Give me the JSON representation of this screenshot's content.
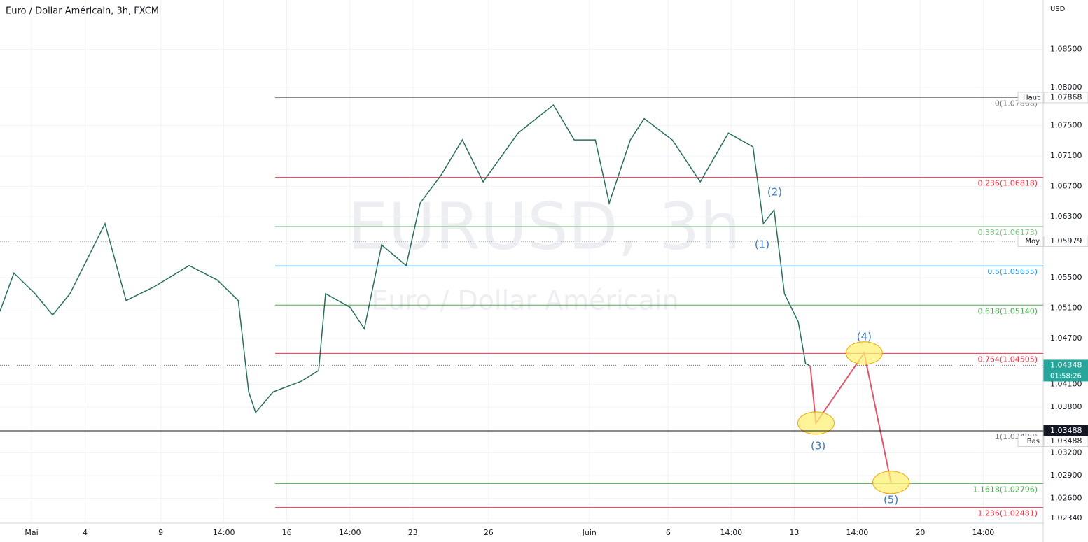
{
  "chart_data": {
    "type": "line",
    "title": "Euro / Dollar Américain, 3h, FXCM",
    "watermark": "EURUSD, 3h",
    "watermark_subtitle": "Euro / Dollar Américain",
    "currency": "USD",
    "grid": true,
    "xlim": [
      0,
      331
    ],
    "ylim": [
      1.02027,
      1.09149
    ],
    "xticks": [
      {
        "value": 10,
        "label": "Mai"
      },
      {
        "value": 27,
        "label": "4"
      },
      {
        "value": 51,
        "label": "9"
      },
      {
        "value": 71,
        "label": "14:00"
      },
      {
        "value": 91,
        "label": "16"
      },
      {
        "value": 111,
        "label": "14:00"
      },
      {
        "value": 131,
        "label": "23"
      },
      {
        "value": 155,
        "label": "26"
      },
      {
        "value": 187,
        "label": "Juin"
      },
      {
        "value": 212,
        "label": "6"
      },
      {
        "value": 232,
        "label": "14:00"
      },
      {
        "value": 252,
        "label": "13"
      },
      {
        "value": 272,
        "label": "14:00"
      },
      {
        "value": 292,
        "label": "20"
      },
      {
        "value": 312,
        "label": "14:00"
      }
    ],
    "yticks": [
      {
        "value": 1.085,
        "label": "1.08500"
      },
      {
        "value": 1.08,
        "label": "1.08000"
      },
      {
        "value": 1.075,
        "label": "1.07500"
      },
      {
        "value": 1.071,
        "label": "1.07100"
      },
      {
        "value": 1.067,
        "label": "1.06700"
      },
      {
        "value": 1.063,
        "label": "1.06300"
      },
      {
        "value": 1.055,
        "label": "1.05500"
      },
      {
        "value": 1.051,
        "label": "1.05100"
      },
      {
        "value": 1.047,
        "label": "1.04700"
      },
      {
        "value": 1.041,
        "label": "1.04100"
      },
      {
        "value": 1.038,
        "label": "1.03800"
      },
      {
        "value": 1.032,
        "label": "1.03200"
      },
      {
        "value": 1.029,
        "label": "1.02900"
      },
      {
        "value": 1.026,
        "label": "1.02600"
      },
      {
        "value": 1.0234,
        "label": "1.02340"
      }
    ],
    "series": [
      {
        "color": "#2a6f5e",
        "x": [
          0,
          4.4,
          11.1,
          16.7,
          22.2,
          33.3,
          40,
          48.9,
          60,
          68.9,
          75.6,
          78.9,
          81.1,
          86.7,
          95.6,
          101.1,
          103.3,
          111.1,
          115.6,
          121.1,
          128.9,
          133.3,
          140,
          146.7,
          153.3,
          164.4,
          175.6,
          182.2,
          188.9,
          193.3,
          200,
          204.4,
          213.3,
          222.2,
          231.1,
          238.9,
          242.2,
          245.6,
          248.9,
          253.3,
          255.6,
          257.1
        ],
        "values": [
          1.0506,
          1.0556,
          1.0529,
          1.0501,
          1.0529,
          1.0621,
          1.052,
          1.0538,
          1.0566,
          1.0547,
          1.052,
          1.04,
          1.0373,
          1.04,
          1.0414,
          1.0428,
          1.0529,
          1.0511,
          1.0483,
          1.0593,
          1.0566,
          1.0648,
          1.0685,
          1.0731,
          1.0676,
          1.074,
          1.0777,
          1.0731,
          1.0731,
          1.0648,
          1.0731,
          1.0759,
          1.0731,
          1.0676,
          1.074,
          1.0722,
          1.0621,
          1.0639,
          1.0529,
          1.0492,
          1.0437,
          1.0434
        ]
      },
      {
        "color": "#e0556a",
        "x": [
          257.1,
          258.9,
          274.2,
          282.7
        ],
        "values": [
          1.0434,
          1.0359,
          1.0451,
          1.0281
        ]
      }
    ],
    "fib_levels": [
      {
        "label": "0(1.07868)",
        "value": 1.07868,
        "color": "#787b86"
      },
      {
        "label": "0.236(1.06818)",
        "value": 1.06818,
        "color": "#f23645"
      },
      {
        "label": "0.382(1.06173)",
        "value": 1.06173,
        "color": "#81c784"
      },
      {
        "label": "0.5(1.05655)",
        "value": 1.05655,
        "color": "#2196f3"
      },
      {
        "label": "0.618(1.05140)",
        "value": 1.0514,
        "color": "#4caf50"
      },
      {
        "label": "0.764(1.04505)",
        "value": 1.04505,
        "color": "#f23645"
      },
      {
        "label": "1(1.03488)",
        "value": 1.03488,
        "color": "#787b86"
      },
      {
        "label": "1.1618(1.02796)",
        "value": 1.02796,
        "color": "#4caf50"
      },
      {
        "label": "1.236(1.02481)",
        "value": 1.02481,
        "color": "#f23645"
      }
    ],
    "price_tags": [
      {
        "label": "Haut",
        "value": 1.07868,
        "value_label": "1.07868",
        "color": "#ffffff"
      },
      {
        "label": "Moy",
        "value": 1.05979,
        "value_label": "1.05979",
        "color": "#ffffff"
      },
      {
        "value": 1.04348,
        "value_label": "1.04348",
        "countdown": "01:58:26",
        "color": "#26a69a"
      },
      {
        "value": 1.03488,
        "value_label": "1.03488",
        "color": "#131722"
      },
      {
        "label": "Bas",
        "value": 1.03488,
        "value_label": "1.03488",
        "color": "#ffffff"
      }
    ],
    "waves": [
      {
        "text": "(1)",
        "x": 241.8,
        "y": 1.05933
      },
      {
        "text": "(2)",
        "x": 245.8,
        "y": 1.06622
      },
      {
        "text": "(3)",
        "x": 259.6,
        "y": 1.03286
      },
      {
        "text": "(4)",
        "x": 274.2,
        "y": 1.0472
      },
      {
        "text": "(5)",
        "x": 282.7,
        "y": 1.02579
      }
    ]
  }
}
